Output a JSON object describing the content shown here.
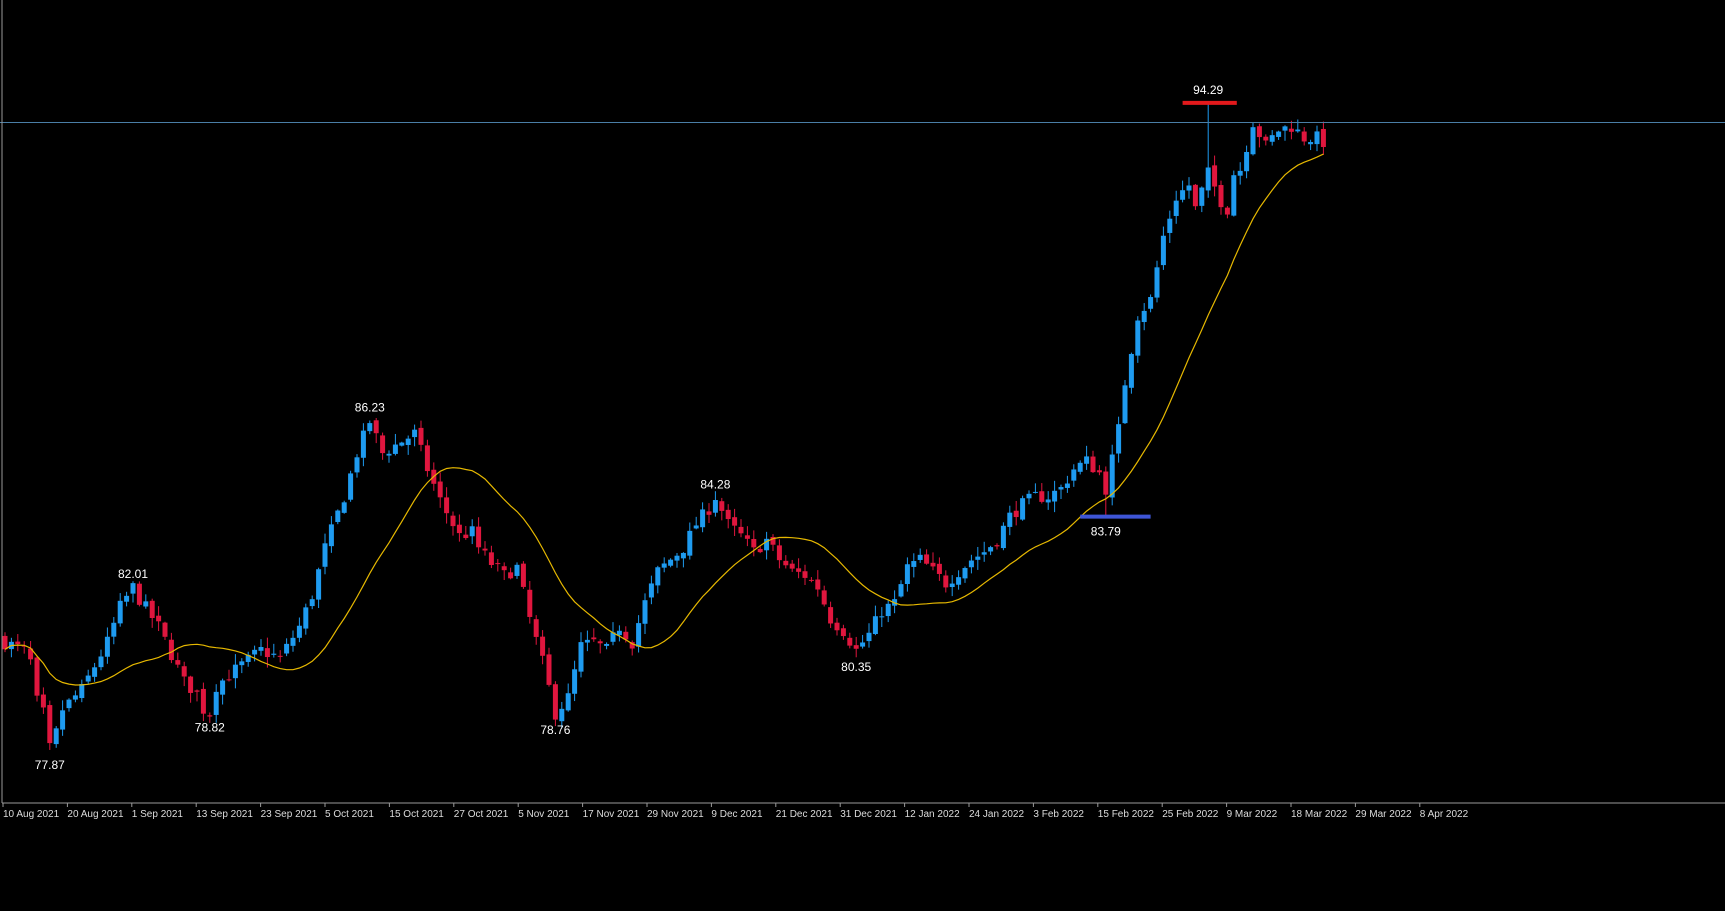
{
  "colors": {
    "background": "#000000",
    "bull_candle": "#1e9bf0",
    "bear_candle": "#e0163e",
    "moving_average": "#e6b800",
    "price_line": "#4a7ea6",
    "resistance_line": "#e3191c",
    "support_line": "#3e55d6",
    "axis": "#9a9a9a",
    "label_text": "#ffffff",
    "tick_text": "#dcdcdc"
  },
  "chart_data": {
    "type": "candlestick",
    "title": "",
    "xlabel": "",
    "ylabel": "",
    "ylim": [
      76.6,
      96.9
    ],
    "x_ticks": [
      "10 Aug 2021",
      "20 Aug 2021",
      "1 Sep 2021",
      "13 Sep 2021",
      "23 Sep 2021",
      "5 Oct 2021",
      "15 Oct 2021",
      "27 Oct 2021",
      "5 Nov 2021",
      "17 Nov 2021",
      "29 Nov 2021",
      "9 Dec 2021",
      "21 Dec 2021",
      "31 Dec 2021",
      "12 Jan 2022",
      "24 Jan 2022",
      "3 Feb 2022",
      "15 Feb 2022",
      "25 Feb 2022",
      "9 Mar 2022",
      "18 Mar 2022",
      "29 Mar 2022",
      "8 Apr 2022"
    ],
    "anchors": [
      [
        0,
        80.6
      ],
      [
        3,
        80.4
      ],
      [
        4,
        80.1
      ],
      [
        5,
        79.1
      ],
      [
        6,
        78.8
      ],
      [
        7,
        77.9
      ],
      [
        8,
        78.3
      ],
      [
        9,
        78.9
      ],
      [
        12,
        79.4
      ],
      [
        16,
        80.6
      ],
      [
        18,
        81.5
      ],
      [
        20,
        82.0
      ],
      [
        21,
        81.7
      ],
      [
        24,
        81.0
      ],
      [
        26,
        80.3
      ],
      [
        28,
        79.6
      ],
      [
        30,
        79.3
      ],
      [
        31,
        78.9
      ],
      [
        32,
        78.8
      ],
      [
        33,
        79.5
      ],
      [
        36,
        79.9
      ],
      [
        40,
        80.4
      ],
      [
        43,
        80.2
      ],
      [
        46,
        81.0
      ],
      [
        48,
        81.8
      ],
      [
        50,
        83.0
      ],
      [
        53,
        84.3
      ],
      [
        55,
        85.4
      ],
      [
        57,
        86.2
      ],
      [
        59,
        85.4
      ],
      [
        61,
        85.6
      ],
      [
        64,
        85.9
      ],
      [
        66,
        85.0
      ],
      [
        68,
        84.2
      ],
      [
        71,
        83.3
      ],
      [
        73,
        83.4
      ],
      [
        74,
        83.0
      ],
      [
        76,
        82.6
      ],
      [
        78,
        82.3
      ],
      [
        80,
        82.5
      ],
      [
        82,
        81.2
      ],
      [
        84,
        80.1
      ],
      [
        86,
        78.8
      ],
      [
        88,
        79.2
      ],
      [
        90,
        80.5
      ],
      [
        92,
        80.6
      ],
      [
        94,
        80.4
      ],
      [
        96,
        81.0
      ],
      [
        98,
        80.6
      ],
      [
        100,
        81.6
      ],
      [
        102,
        82.4
      ],
      [
        104,
        82.7
      ],
      [
        106,
        83.0
      ],
      [
        108,
        83.6
      ],
      [
        110,
        84.0
      ],
      [
        111,
        84.3
      ],
      [
        113,
        83.6
      ],
      [
        115,
        83.3
      ],
      [
        117,
        82.9
      ],
      [
        119,
        83.2
      ],
      [
        121,
        82.7
      ],
      [
        123,
        82.4
      ],
      [
        125,
        82.3
      ],
      [
        127,
        82.0
      ],
      [
        129,
        81.2
      ],
      [
        131,
        80.9
      ],
      [
        133,
        80.4
      ],
      [
        135,
        80.8
      ],
      [
        137,
        81.4
      ],
      [
        139,
        81.6
      ],
      [
        141,
        82.5
      ],
      [
        143,
        82.7
      ],
      [
        145,
        82.4
      ],
      [
        147,
        82.1
      ],
      [
        149,
        82.4
      ],
      [
        151,
        82.7
      ],
      [
        153,
        82.9
      ],
      [
        155,
        83.2
      ],
      [
        157,
        83.8
      ],
      [
        159,
        84.1
      ],
      [
        161,
        84.3
      ],
      [
        163,
        84.3
      ],
      [
        165,
        84.5
      ],
      [
        167,
        85.0
      ],
      [
        169,
        85.2
      ],
      [
        171,
        84.9
      ],
      [
        172,
        84.5
      ],
      [
        174,
        86.0
      ],
      [
        175,
        87.2
      ],
      [
        177,
        88.9
      ],
      [
        179,
        89.3
      ],
      [
        181,
        90.9
      ],
      [
        183,
        91.9
      ],
      [
        185,
        92.2
      ],
      [
        186,
        91.6
      ],
      [
        188,
        92.5
      ],
      [
        190,
        91.8
      ],
      [
        191,
        91.6
      ],
      [
        192,
        92.5
      ],
      [
        193,
        92.6
      ],
      [
        195,
        93.8
      ],
      [
        197,
        93.2
      ],
      [
        199,
        93.6
      ],
      [
        201,
        93.7
      ],
      [
        203,
        93.4
      ],
      [
        205,
        93.4
      ],
      [
        206,
        93.3
      ]
    ],
    "swing_labels": [
      {
        "index": 7,
        "price": 77.87,
        "text": "77.87",
        "position": "below"
      },
      {
        "index": 20,
        "price": 82.01,
        "text": "82.01",
        "position": "above"
      },
      {
        "index": 32,
        "price": 78.82,
        "text": "78.82",
        "position": "below"
      },
      {
        "index": 57,
        "price": 86.23,
        "text": "86.23",
        "position": "above"
      },
      {
        "index": 86,
        "price": 78.76,
        "text": "78.76",
        "position": "below"
      },
      {
        "index": 111,
        "price": 84.28,
        "text": "84.28",
        "position": "above"
      },
      {
        "index": 133,
        "price": 80.35,
        "text": "80.35",
        "position": "below"
      },
      {
        "index": 172,
        "price": 83.79,
        "text": "83.79",
        "position": "below"
      },
      {
        "index": 188,
        "price": 94.29,
        "text": "94.29",
        "position": "above"
      }
    ],
    "horizontal_price_line": 93.79,
    "resistance_level": 94.29,
    "support_level": 83.79,
    "moving_average": {
      "period": 20,
      "type": "line"
    },
    "grid": false,
    "legend": "none"
  }
}
